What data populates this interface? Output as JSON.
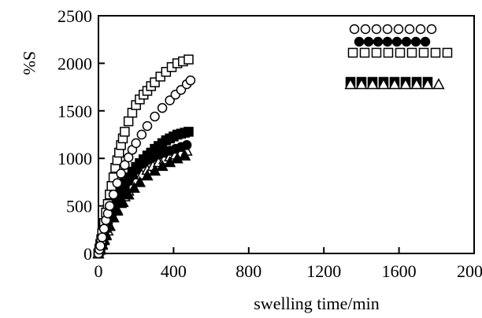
{
  "chart_data": {
    "type": "scatter",
    "title": "",
    "xlabel": "swelling time/min",
    "ylabel": "S%",
    "xlim": [
      0,
      2000
    ],
    "ylim": [
      0,
      2500
    ],
    "grid": false,
    "legend_position": "top-right",
    "x_ticks": [
      "0",
      "400",
      "800",
      "1200",
      "1600",
      "2000"
    ],
    "y_ticks": [
      "0",
      "500",
      "1000",
      "1500",
      "2000",
      "2500"
    ],
    "series": [
      {
        "marker": "square-open",
        "x": [
          0,
          5,
          10,
          15,
          20,
          30,
          40,
          50,
          60,
          70,
          80,
          90,
          100,
          110,
          120,
          130,
          140,
          160,
          180,
          200,
          220,
          240,
          260,
          280,
          300,
          330,
          360,
          390,
          420,
          450,
          480
        ],
        "y": [
          0,
          50,
          100,
          150,
          210,
          320,
          430,
          520,
          620,
          710,
          800,
          900,
          980,
          1060,
          1140,
          1210,
          1280,
          1390,
          1480,
          1560,
          1620,
          1670,
          1710,
          1760,
          1800,
          1860,
          1910,
          1960,
          2000,
          2020,
          2040
        ]
      },
      {
        "marker": "circle-open",
        "x": [
          0,
          5,
          10,
          20,
          30,
          40,
          50,
          60,
          80,
          100,
          120,
          140,
          160,
          180,
          200,
          230,
          260,
          300,
          340,
          380,
          410,
          440,
          470,
          490
        ],
        "y": [
          0,
          40,
          80,
          170,
          260,
          350,
          420,
          500,
          620,
          740,
          840,
          930,
          1010,
          1090,
          1160,
          1250,
          1340,
          1440,
          1530,
          1610,
          1670,
          1720,
          1780,
          1820
        ]
      },
      {
        "marker": "square-filled",
        "x": [
          0,
          5,
          10,
          20,
          30,
          40,
          50,
          60,
          70,
          80,
          90,
          100,
          120,
          140,
          160,
          180,
          200,
          220,
          240,
          260,
          280,
          300,
          320,
          340,
          360,
          380,
          400,
          420,
          440,
          460,
          480
        ],
        "y": [
          0,
          30,
          60,
          130,
          200,
          270,
          330,
          390,
          440,
          490,
          540,
          590,
          670,
          740,
          800,
          860,
          910,
          950,
          990,
          1030,
          1060,
          1100,
          1130,
          1160,
          1190,
          1210,
          1230,
          1250,
          1260,
          1270,
          1280
        ]
      },
      {
        "marker": "circle-filled",
        "x": [
          0,
          10,
          20,
          30,
          40,
          50,
          60,
          80,
          100,
          120,
          140,
          160,
          180,
          200,
          230,
          260,
          290,
          320,
          350,
          380,
          410,
          440,
          470
        ],
        "y": [
          0,
          60,
          130,
          200,
          260,
          320,
          370,
          460,
          540,
          620,
          690,
          760,
          820,
          880,
          940,
          980,
          1010,
          1040,
          1060,
          1080,
          1100,
          1120,
          1140
        ]
      },
      {
        "marker": "triangle-open",
        "x": [
          0,
          10,
          20,
          30,
          40,
          50,
          60,
          80,
          100,
          120,
          140,
          160,
          180,
          200,
          230,
          260,
          290,
          320,
          350,
          380,
          410,
          440,
          470
        ],
        "y": [
          0,
          40,
          90,
          140,
          190,
          240,
          290,
          380,
          460,
          530,
          600,
          660,
          720,
          770,
          830,
          880,
          920,
          960,
          990,
          1020,
          1040,
          1060,
          1080
        ]
      },
      {
        "marker": "triangle-filled",
        "x": [
          0,
          10,
          20,
          30,
          40,
          60,
          80,
          100,
          130,
          160,
          190,
          220,
          260,
          300,
          340,
          380,
          420,
          460
        ],
        "y": [
          0,
          50,
          100,
          150,
          200,
          290,
          380,
          450,
          540,
          620,
          690,
          750,
          820,
          870,
          920,
          960,
          1000,
          1030
        ]
      }
    ],
    "legend_rows": [
      {
        "marker": "circle-open",
        "count": 8
      },
      {
        "marker": "circle-filled",
        "count": 8
      },
      {
        "marker": "square-open",
        "count": 9
      },
      {
        "marker": "square-filled",
        "count": 8
      },
      {
        "marker": "triangle-open",
        "count": 9
      }
    ]
  }
}
